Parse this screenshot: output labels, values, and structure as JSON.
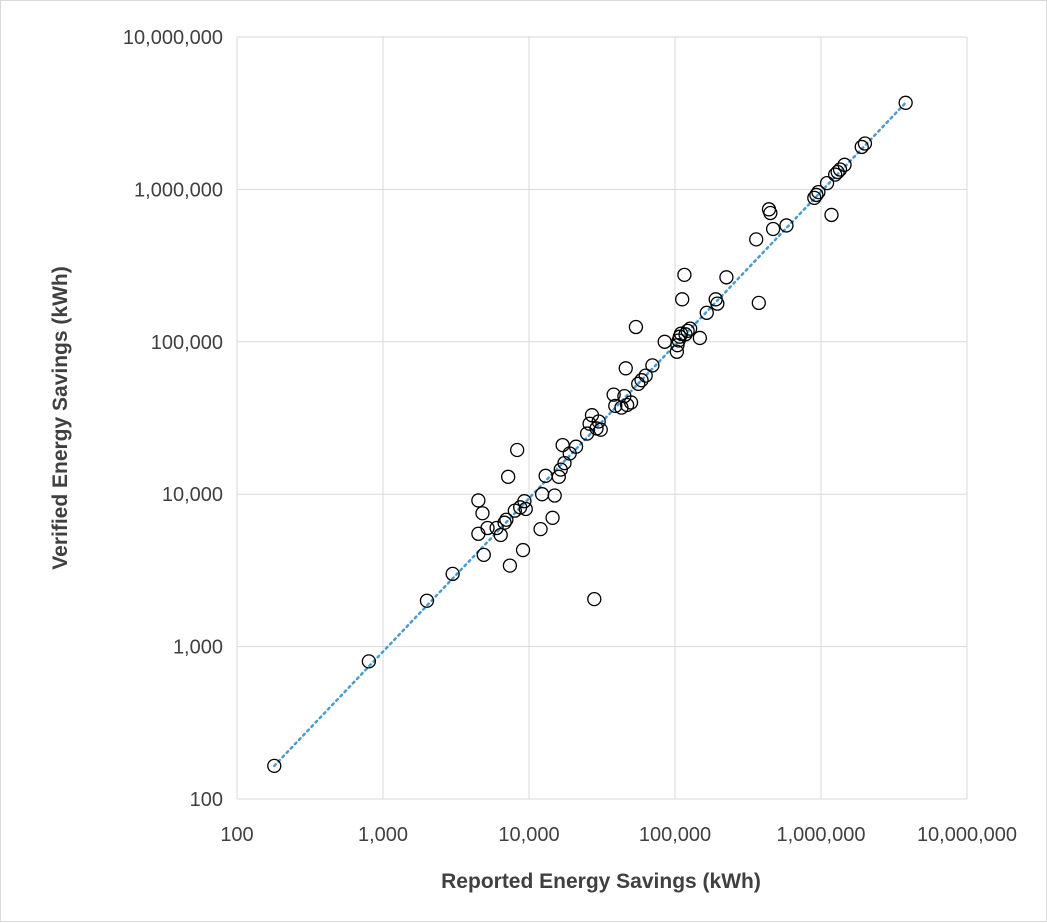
{
  "chart_data": {
    "type": "scatter",
    "title": "",
    "xlabel": "Reported Energy Savings (kWh)",
    "ylabel": "Verified Energy Savings (kWh)",
    "xscale": "log",
    "yscale": "log",
    "xlim": [
      100,
      10000000
    ],
    "ylim": [
      100,
      10000000
    ],
    "xticks": [
      100,
      1000,
      10000,
      100000,
      1000000,
      10000000
    ],
    "yticks": [
      100,
      1000,
      10000,
      100000,
      1000000,
      10000000
    ],
    "xtick_labels": [
      "100",
      "1,000",
      "10,000",
      "100,000",
      "1,000,000",
      "10,000,000"
    ],
    "ytick_labels": [
      "100",
      "1,000",
      "10,000",
      "100,000",
      "1,000,000",
      "10,000,000"
    ],
    "grid": true,
    "legend": "none",
    "marker": "open-circle",
    "marker_color": "#000000",
    "trendline": {
      "style": "dotted",
      "color": "#4a9bd1",
      "from": [
        180,
        165
      ],
      "to": [
        3800000,
        3700000
      ]
    },
    "points": [
      [
        180,
        165
      ],
      [
        800,
        800
      ],
      [
        2000,
        2000
      ],
      [
        3000,
        3000
      ],
      [
        4500,
        9100
      ],
      [
        4500,
        5500
      ],
      [
        4800,
        7500
      ],
      [
        4900,
        4000
      ],
      [
        5200,
        6000
      ],
      [
        6000,
        6000
      ],
      [
        6400,
        5400
      ],
      [
        6800,
        6500
      ],
      [
        7000,
        6800
      ],
      [
        7200,
        13000
      ],
      [
        7400,
        3400
      ],
      [
        8000,
        7800
      ],
      [
        8300,
        19500
      ],
      [
        8700,
        8200
      ],
      [
        9100,
        4300
      ],
      [
        9300,
        9000
      ],
      [
        9500,
        8000
      ],
      [
        12000,
        5900
      ],
      [
        12300,
        10000
      ],
      [
        13000,
        13200
      ],
      [
        14500,
        7000
      ],
      [
        15000,
        9800
      ],
      [
        16000,
        13000
      ],
      [
        16500,
        14500
      ],
      [
        17000,
        21000
      ],
      [
        17500,
        16000
      ],
      [
        19000,
        18500
      ],
      [
        21000,
        20500
      ],
      [
        25000,
        25000
      ],
      [
        26000,
        29000
      ],
      [
        27000,
        33000
      ],
      [
        28000,
        2050
      ],
      [
        29000,
        27000
      ],
      [
        30000,
        30000
      ],
      [
        31000,
        26500
      ],
      [
        38000,
        45000
      ],
      [
        39000,
        38000
      ],
      [
        43000,
        37000
      ],
      [
        45000,
        44000
      ],
      [
        46000,
        67000
      ],
      [
        47000,
        38500
      ],
      [
        50000,
        40000
      ],
      [
        54000,
        125000
      ],
      [
        56000,
        53000
      ],
      [
        59000,
        56000
      ],
      [
        63000,
        60000
      ],
      [
        70000,
        70000
      ],
      [
        85000,
        100000
      ],
      [
        103000,
        86000
      ],
      [
        104000,
        95000
      ],
      [
        106000,
        102000
      ],
      [
        108000,
        108000
      ],
      [
        110000,
        113000
      ],
      [
        112000,
        190000
      ],
      [
        116000,
        275000
      ],
      [
        118000,
        112000
      ],
      [
        122000,
        118000
      ],
      [
        127000,
        122000
      ],
      [
        148000,
        106000
      ],
      [
        165000,
        155000
      ],
      [
        190000,
        190000
      ],
      [
        195000,
        178000
      ],
      [
        225000,
        265000
      ],
      [
        360000,
        470000
      ],
      [
        375000,
        180000
      ],
      [
        440000,
        740000
      ],
      [
        450000,
        700000
      ],
      [
        470000,
        550000
      ],
      [
        580000,
        580000
      ],
      [
        900000,
        880000
      ],
      [
        930000,
        920000
      ],
      [
        960000,
        960000
      ],
      [
        1100000,
        1100000
      ],
      [
        1180000,
        680000
      ],
      [
        1250000,
        1250000
      ],
      [
        1300000,
        1300000
      ],
      [
        1350000,
        1350000
      ],
      [
        1450000,
        1450000
      ],
      [
        1900000,
        1900000
      ],
      [
        2000000,
        2000000
      ],
      [
        3800000,
        3700000
      ]
    ]
  }
}
